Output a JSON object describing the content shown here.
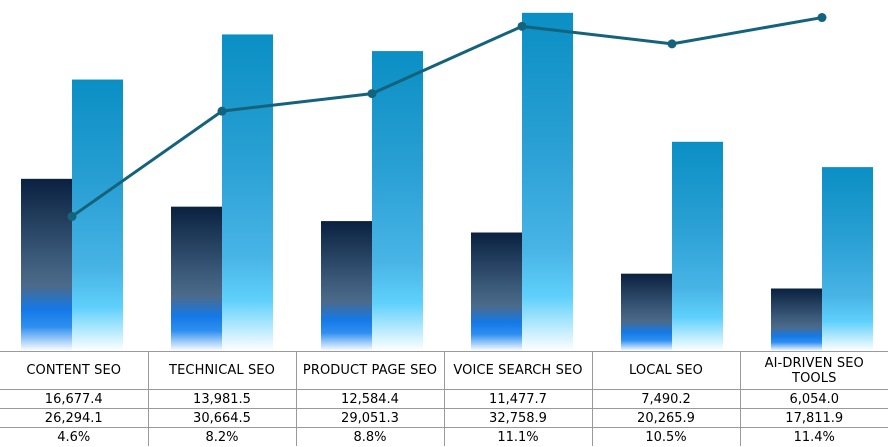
{
  "chart_data": {
    "type": "bar",
    "categories": [
      "CONTENT SEO",
      "TECHNICAL SEO",
      "PRODUCT PAGE SEO",
      "VOICE SEARCH SEO",
      "LOCAL SEO",
      "AI-DRIVEN SEO TOOLS"
    ],
    "series": [
      {
        "type": "bar",
        "values": [
          16677.4,
          13981.5,
          12584.4,
          11477.7,
          7490.2,
          6054.0
        ]
      },
      {
        "type": "bar",
        "values": [
          26294.1,
          30664.5,
          29051.3,
          32758.9,
          20265.9,
          17811.9
        ]
      },
      {
        "type": "line",
        "values": [
          4.6,
          8.2,
          8.8,
          11.1,
          10.5,
          11.4
        ]
      }
    ],
    "ylim_bars": [
      0,
      34000
    ],
    "ylim_line": [
      0,
      12.0
    ],
    "grid": false,
    "legend": "none"
  },
  "table": {
    "headers": [
      "CONTENT SEO",
      "TECHNICAL SEO",
      "PRODUCT PAGE SEO",
      "VOICE SEARCH SEO",
      "LOCAL SEO",
      "AI-DRIVEN SEO TOOLS"
    ],
    "rows": [
      [
        "16,677.4",
        "13,981.5",
        "12,584.4",
        "11,477.7",
        "7,490.2",
        "6,054.0"
      ],
      [
        "26,294.1",
        "30,664.5",
        "29,051.3",
        "32,758.9",
        "20,265.9",
        "17,811.9"
      ],
      [
        "4.6%",
        "8.2%",
        "8.8%",
        "11.1%",
        "10.5%",
        "11.4%"
      ]
    ]
  },
  "colors": {
    "bar1_top": "#0a2140",
    "bar1_mid": "#3a5878",
    "bar1_blue": "#1479e8",
    "bar2_top": "#0a8fc4",
    "bar2_mid": "#42aee0",
    "bar2_light": "#5fd0fb",
    "line": "#14637c"
  }
}
